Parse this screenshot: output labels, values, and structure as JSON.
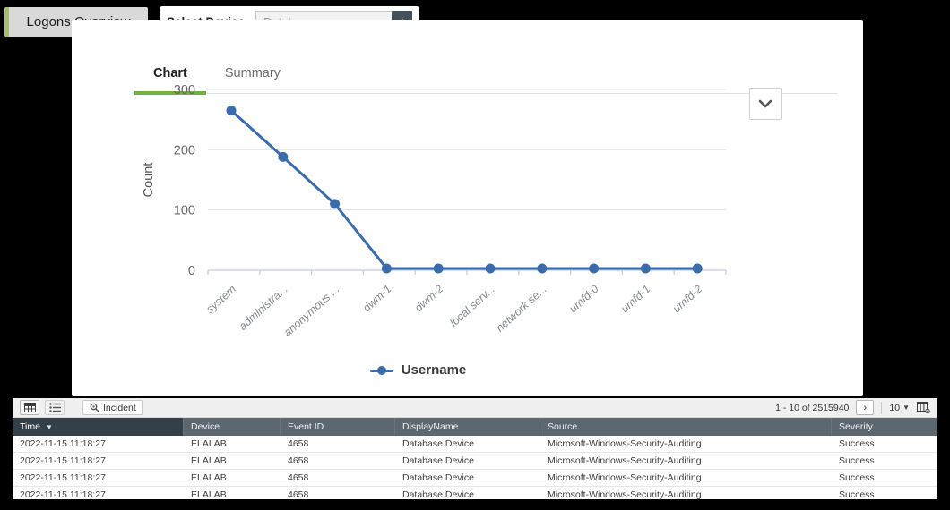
{
  "header": {
    "title": "Logons Overview",
    "select_device": {
      "label": "Select Device",
      "placeholder": "Database",
      "add_button": "+"
    }
  },
  "tabs": [
    {
      "label": "Chart",
      "active": true
    },
    {
      "label": "Summary",
      "active": false
    }
  ],
  "chart_data": {
    "type": "line",
    "categories": [
      "system",
      "administra...",
      "anonymous ...",
      "dwm-1",
      "dwm-2",
      "local serv...",
      "network se...",
      "umfd-0",
      "umfd-1",
      "umfd-2"
    ],
    "series": [
      {
        "name": "Username",
        "values": [
          265,
          188,
          110,
          3,
          3,
          3,
          3,
          3,
          3,
          3
        ]
      }
    ],
    "title": "",
    "xlabel": "",
    "ylabel": "Count",
    "ylim": [
      0,
      300
    ],
    "yticks": [
      0,
      100,
      200,
      300
    ],
    "grid": true,
    "legend_position": "bottom",
    "line_color": "#3a6cab"
  },
  "table": {
    "toolbar": {
      "incident_label": "Incident",
      "range": "1 - 10 of 2515940",
      "next_label": "›",
      "page_size": "10"
    },
    "columns": [
      "Time",
      "Device",
      "Event ID",
      "DisplayName",
      "Source",
      "Severity"
    ],
    "sorted_column": "Time",
    "rows": [
      [
        "2022-11-15 11:18:27",
        "ELALAB",
        "4658",
        "Database Device",
        "Microsoft-Windows-Security-Auditing",
        "Success"
      ],
      [
        "2022-11-15 11:18:27",
        "ELALAB",
        "4658",
        "Database Device",
        "Microsoft-Windows-Security-Auditing",
        "Success"
      ],
      [
        "2022-11-15 11:18:27",
        "ELALAB",
        "4658",
        "Database Device",
        "Microsoft-Windows-Security-Auditing",
        "Success"
      ],
      [
        "2022-11-15 11:18:27",
        "ELALAB",
        "4658",
        "Database Device",
        "Microsoft-Windows-Security-Auditing",
        "Success"
      ]
    ]
  }
}
